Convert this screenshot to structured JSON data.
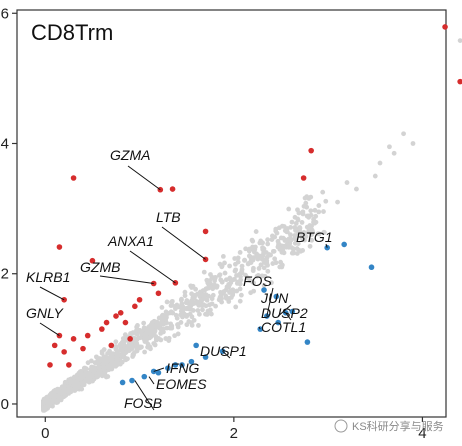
{
  "chart_data": {
    "type": "scatter",
    "title": "CD8Trm",
    "xlabel": "",
    "ylabel": "",
    "xlim": [
      -0.3,
      4.25
    ],
    "ylim": [
      -0.2,
      6.05
    ],
    "x_ticks": [
      0,
      2,
      4
    ],
    "y_ticks": [
      0,
      2,
      4,
      6
    ],
    "grid": false,
    "colors": {
      "background": "#d3d3d3",
      "up": "#d62d2d",
      "down": "#3385c6",
      "axis": "#333333"
    },
    "series": [
      {
        "group": "up",
        "points": [
          [
            4.24,
            5.79
          ],
          [
            4.4,
            4.95
          ],
          [
            2.82,
            3.89
          ],
          [
            2.74,
            3.47
          ],
          [
            0.3,
            3.47
          ],
          [
            1.22,
            3.29
          ],
          [
            1.35,
            3.3
          ],
          [
            1.7,
            2.65
          ],
          [
            1.7,
            2.22
          ],
          [
            1.38,
            1.86
          ],
          [
            1.15,
            1.85
          ],
          [
            0.15,
            2.41
          ],
          [
            0.2,
            1.6
          ],
          [
            0.15,
            1.05
          ],
          [
            0.1,
            0.9
          ],
          [
            0.2,
            0.8
          ],
          [
            0.4,
            0.85
          ],
          [
            0.7,
            0.9
          ],
          [
            0.9,
            1.0
          ],
          [
            0.65,
            1.25
          ],
          [
            0.75,
            1.35
          ],
          [
            0.95,
            1.5
          ],
          [
            1.2,
            1.7
          ],
          [
            1.0,
            1.6
          ],
          [
            0.5,
            2.2
          ],
          [
            0.8,
            1.4
          ],
          [
            0.6,
            1.15
          ],
          [
            0.3,
            1.0
          ],
          [
            0.05,
            0.6
          ],
          [
            0.25,
            0.6
          ],
          [
            0.45,
            1.05
          ],
          [
            0.85,
            1.25
          ]
        ]
      },
      {
        "group": "down",
        "points": [
          [
            3.17,
            2.45
          ],
          [
            2.99,
            2.4
          ],
          [
            3.46,
            2.1
          ],
          [
            2.32,
            1.75
          ],
          [
            2.45,
            1.65
          ],
          [
            2.35,
            1.35
          ],
          [
            2.55,
            1.4
          ],
          [
            2.62,
            1.42
          ],
          [
            2.47,
            1.25
          ],
          [
            2.78,
            0.95
          ],
          [
            2.28,
            1.15
          ],
          [
            1.88,
            0.81
          ],
          [
            1.7,
            0.72
          ],
          [
            1.55,
            0.65
          ],
          [
            1.45,
            0.6
          ],
          [
            1.3,
            0.55
          ],
          [
            1.2,
            0.48
          ],
          [
            1.05,
            0.42
          ],
          [
            0.92,
            0.36
          ],
          [
            0.82,
            0.33
          ],
          [
            1.6,
            0.9
          ],
          [
            1.15,
            0.5
          ],
          [
            1.38,
            0.6
          ]
        ]
      }
    ],
    "labels": [
      {
        "text": "GZMA",
        "x": 1.22,
        "y": 3.29
      },
      {
        "text": "LTB",
        "x": 1.7,
        "y": 2.22
      },
      {
        "text": "ANXA1",
        "x": 1.38,
        "y": 1.86
      },
      {
        "text": "GZMB",
        "x": 1.15,
        "y": 1.85
      },
      {
        "text": "KLRB1",
        "x": 0.2,
        "y": 1.6
      },
      {
        "text": "GNLY",
        "x": 0.15,
        "y": 1.05
      },
      {
        "text": "BTG1",
        "x": 2.99,
        "y": 2.4
      },
      {
        "text": "FOS",
        "x": 2.35,
        "y": 1.35
      },
      {
        "text": "JUN",
        "x": 2.47,
        "y": 1.35
      },
      {
        "text": "DUSP2",
        "x": 2.55,
        "y": 1.4
      },
      {
        "text": "COTL1",
        "x": 2.28,
        "y": 1.15
      },
      {
        "text": "DUSP1",
        "x": 1.88,
        "y": 0.81
      },
      {
        "text": "IFNG",
        "x": 1.15,
        "y": 0.5
      },
      {
        "text": "EOMES",
        "x": 1.1,
        "y": 0.42
      },
      {
        "text": "FOSB",
        "x": 0.95,
        "y": 0.36
      }
    ]
  },
  "watermark": "KS科研分享与服务"
}
